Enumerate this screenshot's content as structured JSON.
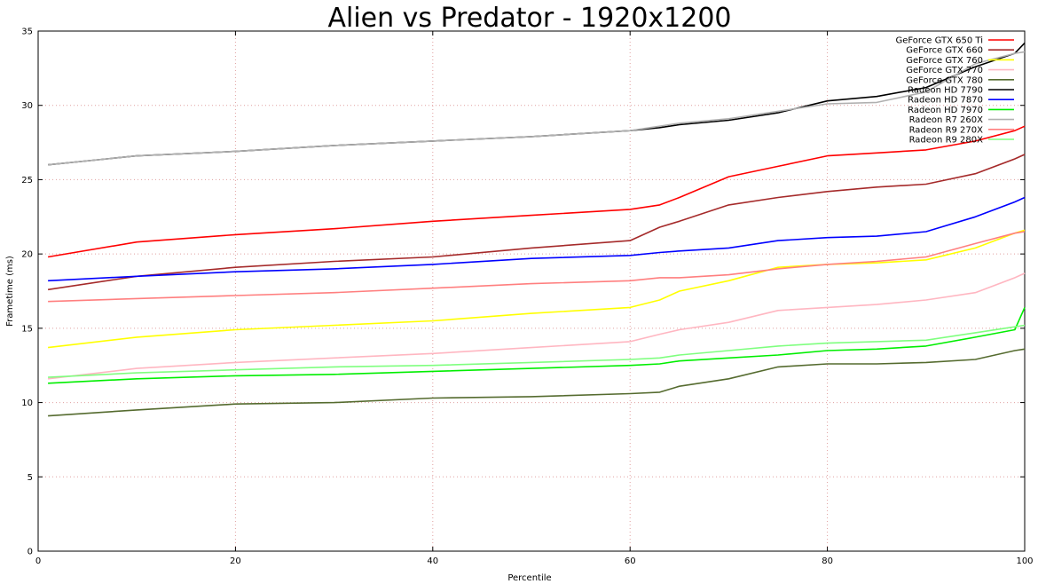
{
  "chart_data": {
    "type": "line",
    "title": "Alien vs Predator - 1920x1200",
    "xlabel": "Percentile",
    "ylabel": "Frametime (ms)",
    "xlim": [
      0,
      100
    ],
    "ylim": [
      0,
      35
    ],
    "xticks": [
      0,
      20,
      40,
      60,
      80,
      100
    ],
    "yticks": [
      0,
      5,
      10,
      15,
      20,
      25,
      30,
      35
    ],
    "grid": true,
    "legend_position": "top-right",
    "x": [
      1,
      10,
      20,
      30,
      40,
      50,
      60,
      63,
      65,
      70,
      75,
      80,
      85,
      90,
      95,
      99,
      100
    ],
    "series": [
      {
        "name": "GeForce GTX 650 Ti",
        "color": "#ff0000",
        "values": [
          19.8,
          20.8,
          21.3,
          21.7,
          22.2,
          22.6,
          23.0,
          23.3,
          23.8,
          25.2,
          25.9,
          26.6,
          26.8,
          27.0,
          27.6,
          28.3,
          28.6
        ]
      },
      {
        "name": "GeForce GTX 660",
        "color": "#a52a2a",
        "values": [
          17.6,
          18.5,
          19.1,
          19.5,
          19.8,
          20.4,
          20.9,
          21.8,
          22.2,
          23.3,
          23.8,
          24.2,
          24.5,
          24.7,
          25.4,
          26.4,
          26.7
        ]
      },
      {
        "name": "GeForce GTX 760",
        "color": "#ffff00",
        "values": [
          13.7,
          14.4,
          14.9,
          15.2,
          15.5,
          16.0,
          16.4,
          16.9,
          17.5,
          18.2,
          19.1,
          19.3,
          19.4,
          19.6,
          20.4,
          21.4,
          21.6
        ]
      },
      {
        "name": "GeForce GTX 770",
        "color": "#ffb6c1",
        "values": [
          11.6,
          12.3,
          12.7,
          13.0,
          13.3,
          13.7,
          14.1,
          14.6,
          14.9,
          15.4,
          16.2,
          16.4,
          16.6,
          16.9,
          17.4,
          18.4,
          18.7
        ]
      },
      {
        "name": "GeForce GTX 780",
        "color": "#556b2f",
        "values": [
          9.1,
          9.5,
          9.9,
          10.0,
          10.3,
          10.4,
          10.6,
          10.7,
          11.1,
          11.6,
          12.4,
          12.6,
          12.6,
          12.7,
          12.9,
          13.5,
          13.6
        ]
      },
      {
        "name": "Radeon HD 7790",
        "color": "#000000",
        "values": [
          26.0,
          26.6,
          26.9,
          27.3,
          27.6,
          27.9,
          28.3,
          28.5,
          28.7,
          29.0,
          29.5,
          30.3,
          30.6,
          31.2,
          32.6,
          33.5,
          34.2
        ]
      },
      {
        "name": "Radeon HD 7870",
        "color": "#0000ff",
        "values": [
          18.2,
          18.5,
          18.8,
          19.0,
          19.3,
          19.7,
          19.9,
          20.1,
          20.2,
          20.4,
          20.9,
          21.1,
          21.2,
          21.5,
          22.5,
          23.5,
          23.8
        ]
      },
      {
        "name": "Radeon HD 7970",
        "color": "#00ee00",
        "values": [
          11.3,
          11.6,
          11.8,
          11.9,
          12.1,
          12.3,
          12.5,
          12.6,
          12.8,
          13.0,
          13.2,
          13.5,
          13.6,
          13.8,
          14.4,
          14.9,
          16.4
        ]
      },
      {
        "name": "Radeon R7 260X",
        "color": "#b0b0b0",
        "values": [
          26.0,
          26.6,
          26.9,
          27.3,
          27.6,
          27.9,
          28.3,
          28.6,
          28.8,
          29.1,
          29.6,
          30.1,
          30.2,
          30.9,
          32.8,
          33.5,
          33.6
        ]
      },
      {
        "name": "Radeon R9 270X",
        "color": "#ff7f7f",
        "values": [
          16.8,
          17.0,
          17.2,
          17.4,
          17.7,
          18.0,
          18.2,
          18.4,
          18.4,
          18.6,
          19.0,
          19.3,
          19.5,
          19.8,
          20.7,
          21.4,
          21.5
        ]
      },
      {
        "name": "Radeon R9 280X",
        "color": "#7fff7f",
        "values": [
          11.7,
          12.0,
          12.2,
          12.4,
          12.5,
          12.7,
          12.9,
          13.0,
          13.2,
          13.5,
          13.8,
          14.0,
          14.1,
          14.2,
          14.7,
          15.1,
          15.2
        ]
      }
    ]
  }
}
